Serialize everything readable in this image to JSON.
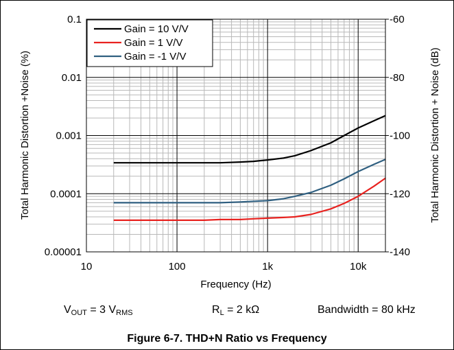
{
  "chart_data": {
    "type": "line",
    "title": "Figure 6-7. THD+N Ratio vs Frequency",
    "xlabel": "Frequency (Hz)",
    "ylabel_left": "Total Harmonic Distortion +Noise (%)",
    "ylabel_right": "Total Harmonic Distortion + Noise (dB)",
    "x_scale": "log",
    "y_scale": "log",
    "xlim": [
      10,
      20000
    ],
    "ylim": [
      1e-05,
      0.1
    ],
    "y2lim": [
      -140,
      -60
    ],
    "grid": true,
    "legend_position": "top-left",
    "x_ticks": [
      {
        "value": 10,
        "label": "10"
      },
      {
        "value": 100,
        "label": "100"
      },
      {
        "value": 1000,
        "label": "1k"
      },
      {
        "value": 10000,
        "label": "10k"
      }
    ],
    "y_ticks": [
      {
        "value": 0.1,
        "label": "0.1"
      },
      {
        "value": 0.01,
        "label": "0.01"
      },
      {
        "value": 0.001,
        "label": "0.001"
      },
      {
        "value": 0.0001,
        "label": "0.0001"
      },
      {
        "value": 1e-05,
        "label": "0.00001"
      }
    ],
    "y2_ticks": [
      "-60",
      "-80",
      "-100",
      "-120",
      "-140"
    ],
    "series": [
      {
        "name": "Gain = 10 V/V",
        "color": "#000000",
        "x": [
          20,
          30,
          50,
          100,
          200,
          300,
          500,
          700,
          1000,
          1500,
          2000,
          3000,
          5000,
          7000,
          10000,
          15000,
          20000
        ],
        "y": [
          0.00034,
          0.00034,
          0.00034,
          0.00034,
          0.00034,
          0.00034,
          0.00035,
          0.00036,
          0.00038,
          0.00041,
          0.00045,
          0.00055,
          0.00075,
          0.001,
          0.00135,
          0.0018,
          0.0022
        ]
      },
      {
        "name": "Gain = 1 V/V",
        "color": "#e8221f",
        "x": [
          20,
          30,
          50,
          100,
          200,
          300,
          500,
          700,
          1000,
          1500,
          2000,
          3000,
          5000,
          7000,
          10000,
          15000,
          20000
        ],
        "y": [
          3.5e-05,
          3.5e-05,
          3.5e-05,
          3.5e-05,
          3.5e-05,
          3.6e-05,
          3.6e-05,
          3.7e-05,
          3.8e-05,
          3.9e-05,
          4e-05,
          4.4e-05,
          5.5e-05,
          6.8e-05,
          9e-05,
          0.000135,
          0.000185
        ]
      },
      {
        "name": "Gain = -1 V/V",
        "color": "#2f5f80",
        "x": [
          20,
          30,
          50,
          100,
          200,
          300,
          500,
          700,
          1000,
          1500,
          2000,
          3000,
          5000,
          7000,
          10000,
          15000,
          20000
        ],
        "y": [
          7e-05,
          7e-05,
          7e-05,
          7e-05,
          7e-05,
          7e-05,
          7.2e-05,
          7.4e-05,
          7.6e-05,
          8.2e-05,
          9e-05,
          0.000105,
          0.00014,
          0.00018,
          0.00024,
          0.00032,
          0.00039
        ]
      }
    ]
  },
  "conditions": {
    "vout_prefix": "V",
    "vout_sub": "OUT",
    "vout_mid": " = 3 V",
    "vout_unit_sub": "RMS",
    "rl_prefix": "R",
    "rl_sub": "L",
    "rl_value": " = 2 kΩ",
    "bandwidth": "Bandwidth = 80 kHz"
  }
}
